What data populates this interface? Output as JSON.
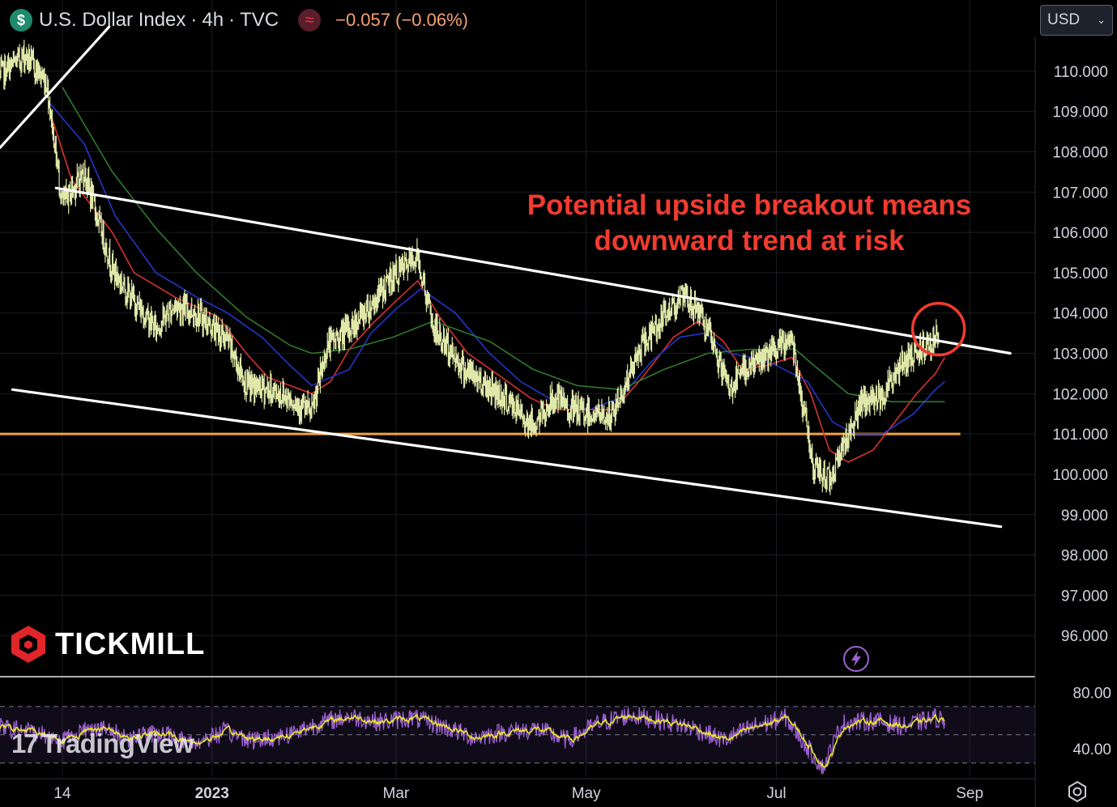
{
  "header": {
    "symbol_icon": "$",
    "title": "U.S. Dollar Index",
    "interval": "4h",
    "source": "TVC",
    "indicator_icon": "≈",
    "change": "−0.057 (−0.06%)"
  },
  "currency_select": {
    "value": "USD",
    "icon": "chevron-down-icon"
  },
  "annotation": {
    "line1": "Potential upside breakout means",
    "line2": "downward trend at risk"
  },
  "branding": {
    "tickmill": "TICKMILL",
    "tradingview": "TradingView",
    "tv_mark": "17"
  },
  "colors": {
    "price": "#dfe8a8",
    "ema_fast": "#d8322f",
    "ema_mid": "#2435c9",
    "ema_slow": "#2f7a2c",
    "support": "#f7a23a",
    "channel": "#ffffff",
    "rsi": "#e6e62b",
    "rsi_vol": "#9b5fd0",
    "annotation": "#f23b2f"
  },
  "chart_data": [
    {
      "type": "line",
      "y_axis": {
        "ylim": [
          95,
          111
        ],
        "ticks": [
          "110.000",
          "109.000",
          "108.000",
          "107.000",
          "106.000",
          "105.000",
          "104.000",
          "103.000",
          "102.000",
          "101.000",
          "100.000",
          "99.000",
          "98.000",
          "97.000",
          "96.000"
        ]
      },
      "x_axis": {
        "labels": [
          {
            "label": "14",
            "date": "2022-11-14"
          },
          {
            "label": "2023",
            "date": "2023-01-01"
          },
          {
            "label": "Mar",
            "date": "2023-03-01"
          },
          {
            "label": "May",
            "date": "2023-05-01"
          },
          {
            "label": "Jul",
            "date": "2023-07-01"
          },
          {
            "label": "Sep",
            "date": "2023-09-01"
          }
        ],
        "xlim": [
          "2022-10-25",
          "2023-09-22"
        ]
      },
      "price_path": {
        "x": [
          "2022-10-25",
          "2022-11-02",
          "2022-11-09",
          "2022-11-14",
          "2022-11-21",
          "2022-11-30",
          "2022-12-05",
          "2022-12-14",
          "2022-12-20",
          "2022-12-27",
          "2023-01-06",
          "2023-01-12",
          "2023-01-19",
          "2023-01-26",
          "2023-02-02",
          "2023-02-07",
          "2023-02-14",
          "2023-02-21",
          "2023-02-28",
          "2023-03-08",
          "2023-03-13",
          "2023-03-23",
          "2023-04-03",
          "2023-04-14",
          "2023-04-21",
          "2023-04-26",
          "2023-05-09",
          "2023-05-19",
          "2023-05-31",
          "2023-06-06",
          "2023-06-16",
          "2023-06-22",
          "2023-06-30",
          "2023-07-06",
          "2023-07-13",
          "2023-07-18",
          "2023-07-24",
          "2023-07-28",
          "2023-08-04",
          "2023-08-11",
          "2023-08-17",
          "2023-08-22"
        ],
        "y": [
          109.9,
          110.4,
          109.7,
          106.7,
          107.5,
          105.1,
          104.5,
          103.6,
          104.2,
          104.0,
          103.3,
          102.2,
          102.1,
          101.9,
          101.5,
          103.2,
          103.6,
          104.2,
          104.9,
          105.4,
          103.6,
          102.6,
          102.0,
          101.2,
          101.9,
          101.6,
          101.4,
          103.2,
          104.4,
          104.1,
          102.1,
          102.7,
          103.0,
          103.4,
          100.1,
          99.9,
          101.0,
          101.7,
          102.0,
          102.8,
          103.2,
          103.4
        ]
      },
      "moving_averages": [
        {
          "x": [
            "2022-11-10",
            "2022-11-17",
            "2022-11-30",
            "2022-12-07",
            "2022-12-20",
            "2023-01-03",
            "2023-01-12",
            "2023-01-19",
            "2023-01-26",
            "2023-02-02",
            "2023-02-08",
            "2023-02-14",
            "2023-02-21",
            "2023-03-01",
            "2023-03-08",
            "2023-03-15",
            "2023-03-24",
            "2023-04-04",
            "2023-04-13",
            "2023-04-21",
            "2023-04-28",
            "2023-05-10",
            "2023-05-19",
            "2023-05-29",
            "2023-06-06",
            "2023-06-14",
            "2023-06-20",
            "2023-06-28",
            "2023-07-06",
            "2023-07-12",
            "2023-07-18",
            "2023-07-24",
            "2023-08-01",
            "2023-08-08",
            "2023-08-15",
            "2023-08-21",
            "2023-08-24"
          ],
          "y": [
            109.0,
            107.3,
            106.0,
            105.0,
            104.4,
            103.9,
            103.0,
            102.4,
            102.2,
            102.0,
            102.3,
            103.1,
            103.7,
            104.3,
            104.8,
            103.9,
            103.0,
            102.4,
            101.9,
            101.6,
            101.6,
            101.6,
            102.4,
            103.4,
            103.8,
            103.3,
            102.6,
            102.7,
            102.9,
            102.0,
            100.6,
            100.3,
            100.6,
            101.3,
            102.0,
            102.5,
            102.9
          ]
        },
        {
          "x": [
            "2022-11-10",
            "2022-11-21",
            "2022-12-01",
            "2022-12-14",
            "2022-12-27",
            "2023-01-06",
            "2023-01-17",
            "2023-01-26",
            "2023-02-02",
            "2023-02-14",
            "2023-02-21",
            "2023-03-01",
            "2023-03-09",
            "2023-03-20",
            "2023-03-31",
            "2023-04-10",
            "2023-04-21",
            "2023-05-02",
            "2023-05-12",
            "2023-05-22",
            "2023-05-31",
            "2023-06-08",
            "2023-06-16",
            "2023-06-23",
            "2023-07-01",
            "2023-07-11",
            "2023-07-19",
            "2023-07-26",
            "2023-08-04",
            "2023-08-14",
            "2023-08-21",
            "2023-08-24"
          ],
          "y": [
            109.2,
            108.2,
            106.4,
            105.0,
            104.4,
            104.0,
            103.4,
            102.7,
            102.2,
            102.6,
            103.5,
            104.1,
            104.6,
            104.0,
            103.0,
            102.3,
            101.8,
            101.6,
            101.9,
            102.8,
            103.4,
            103.5,
            103.0,
            102.9,
            102.7,
            102.3,
            101.3,
            101.0,
            101.0,
            101.5,
            102.1,
            102.3
          ]
        },
        {
          "x": [
            "2022-11-14",
            "2022-11-30",
            "2022-12-14",
            "2022-12-27",
            "2023-01-12",
            "2023-01-26",
            "2023-02-02",
            "2023-02-14",
            "2023-02-28",
            "2023-03-13",
            "2023-03-31",
            "2023-04-14",
            "2023-04-28",
            "2023-05-12",
            "2023-05-26",
            "2023-06-09",
            "2023-06-23",
            "2023-07-07",
            "2023-07-13",
            "2023-07-24",
            "2023-08-07",
            "2023-08-18",
            "2023-08-24"
          ],
          "y": [
            109.6,
            107.5,
            106.1,
            105.0,
            103.9,
            103.2,
            103.0,
            103.1,
            103.4,
            103.8,
            103.3,
            102.6,
            102.2,
            102.1,
            102.6,
            103.0,
            103.1,
            103.1,
            102.7,
            102.0,
            101.8,
            101.8,
            101.8
          ]
        }
      ],
      "support_line": {
        "y": 101.0,
        "x": [
          "2022-10-25",
          "2023-08-29"
        ]
      },
      "channel_lines": [
        {
          "name": "",
          "x": [
            "2022-11-12",
            "2023-09-14"
          ],
          "y": [
            107.1,
            103.0
          ]
        },
        {
          "name": "",
          "x": [
            "2022-10-29",
            "2023-09-11"
          ],
          "y": [
            102.1,
            98.7
          ]
        },
        {
          "name": "",
          "x": [
            "2022-10-25",
            "2022-11-29"
          ],
          "y": [
            108.1,
            111.1
          ]
        }
      ],
      "highlight": {
        "x": "2023-08-22",
        "y": 103.6
      },
      "grid": true
    },
    {
      "type": "line",
      "y_axis": {
        "ylim": [
          20,
          90
        ],
        "ticks": [
          "80.00",
          "40.00"
        ]
      },
      "bands": [
        70,
        50,
        30
      ],
      "rsi": {
        "x": [
          "2022-10-25",
          "2022-11-05",
          "2022-11-14",
          "2022-11-24",
          "2022-12-05",
          "2022-12-15",
          "2022-12-26",
          "2023-01-05",
          "2023-01-15",
          "2023-01-25",
          "2023-02-04",
          "2023-02-14",
          "2023-02-24",
          "2023-03-06",
          "2023-03-16",
          "2023-03-26",
          "2023-04-05",
          "2023-04-15",
          "2023-04-25",
          "2023-05-05",
          "2023-05-15",
          "2023-05-25",
          "2023-06-04",
          "2023-06-14",
          "2023-06-24",
          "2023-07-04",
          "2023-07-10",
          "2023-07-16",
          "2023-07-22",
          "2023-08-01",
          "2023-08-11",
          "2023-08-21",
          "2023-08-24"
        ],
        "y": [
          55,
          52,
          46,
          56,
          48,
          51,
          44,
          52,
          46,
          50,
          58,
          63,
          59,
          62,
          56,
          48,
          52,
          54,
          46,
          58,
          64,
          60,
          55,
          46,
          56,
          62,
          44,
          26,
          58,
          60,
          56,
          62,
          60
        ]
      },
      "grid": false
    }
  ]
}
